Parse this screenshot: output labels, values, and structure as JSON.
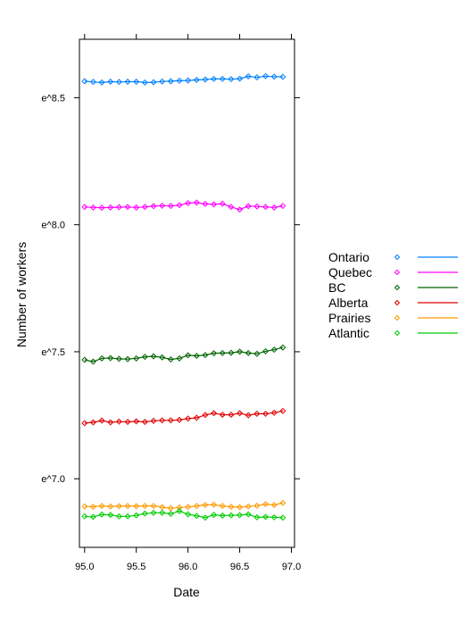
{
  "chart_data": {
    "type": "line",
    "title": "",
    "xlabel": "Date",
    "ylabel": "Number of workers",
    "xlim": [
      94.95,
      97.03
    ],
    "ylim": [
      6.73,
      8.73
    ],
    "x_ticks": [
      95.0,
      95.5,
      96.0,
      96.5,
      97.0
    ],
    "x_tick_labels": [
      "95.0",
      "95.5",
      "96.0",
      "96.5",
      "97.0"
    ],
    "y_ticks": [
      7.0,
      7.5,
      8.0,
      8.5
    ],
    "y_tick_labels": [
      "e^7.0",
      "e^7.5",
      "e^8.0",
      "e^8.5"
    ],
    "grid": false,
    "legend_position": "right",
    "x": [
      95.0,
      95.0833,
      95.1667,
      95.25,
      95.3333,
      95.4167,
      95.5,
      95.5833,
      95.6667,
      95.75,
      95.8333,
      95.9167,
      96.0,
      96.0833,
      96.1667,
      96.25,
      96.3333,
      96.4167,
      96.5,
      96.5833,
      96.6667,
      96.75,
      96.8333,
      96.9167
    ],
    "series": [
      {
        "name": "Ontario",
        "color": "#0080ff",
        "values": [
          8.565,
          8.562,
          8.56,
          8.563,
          8.562,
          8.563,
          8.563,
          8.56,
          8.561,
          8.564,
          8.565,
          8.567,
          8.568,
          8.57,
          8.572,
          8.574,
          8.574,
          8.573,
          8.575,
          8.584,
          8.58,
          8.585,
          8.583,
          8.582
        ]
      },
      {
        "name": "Quebec",
        "color": "#ff00ff",
        "values": [
          8.07,
          8.068,
          8.067,
          8.068,
          8.069,
          8.07,
          8.068,
          8.07,
          8.073,
          8.075,
          8.074,
          8.077,
          8.085,
          8.087,
          8.082,
          8.08,
          8.083,
          8.07,
          8.06,
          8.073,
          8.072,
          8.07,
          8.068,
          8.074
        ]
      },
      {
        "name": "BC",
        "color": "#006400",
        "values": [
          7.468,
          7.461,
          7.474,
          7.475,
          7.472,
          7.471,
          7.474,
          7.48,
          7.482,
          7.478,
          7.47,
          7.474,
          7.486,
          7.484,
          7.487,
          7.494,
          7.495,
          7.496,
          7.5,
          7.495,
          7.492,
          7.502,
          7.508,
          7.517
        ]
      },
      {
        "name": "Alberta",
        "color": "#e00000",
        "values": [
          7.219,
          7.222,
          7.229,
          7.222,
          7.225,
          7.224,
          7.226,
          7.224,
          7.228,
          7.23,
          7.23,
          7.232,
          7.237,
          7.24,
          7.251,
          7.258,
          7.252,
          7.252,
          7.258,
          7.25,
          7.256,
          7.256,
          7.26,
          7.267
        ]
      },
      {
        "name": "Prairies",
        "color": "#ff9900",
        "values": [
          6.891,
          6.89,
          6.893,
          6.891,
          6.892,
          6.893,
          6.892,
          6.893,
          6.893,
          6.888,
          6.884,
          6.887,
          6.889,
          6.893,
          6.897,
          6.898,
          6.893,
          6.89,
          6.888,
          6.891,
          6.894,
          6.9,
          6.897,
          6.905
        ]
      },
      {
        "name": "Atlantic",
        "color": "#00cc00",
        "values": [
          6.852,
          6.85,
          6.859,
          6.858,
          6.852,
          6.852,
          6.856,
          6.863,
          6.866,
          6.866,
          6.862,
          6.873,
          6.86,
          6.854,
          6.847,
          6.858,
          6.855,
          6.856,
          6.857,
          6.86,
          6.848,
          6.85,
          6.848,
          6.847
        ]
      }
    ]
  }
}
